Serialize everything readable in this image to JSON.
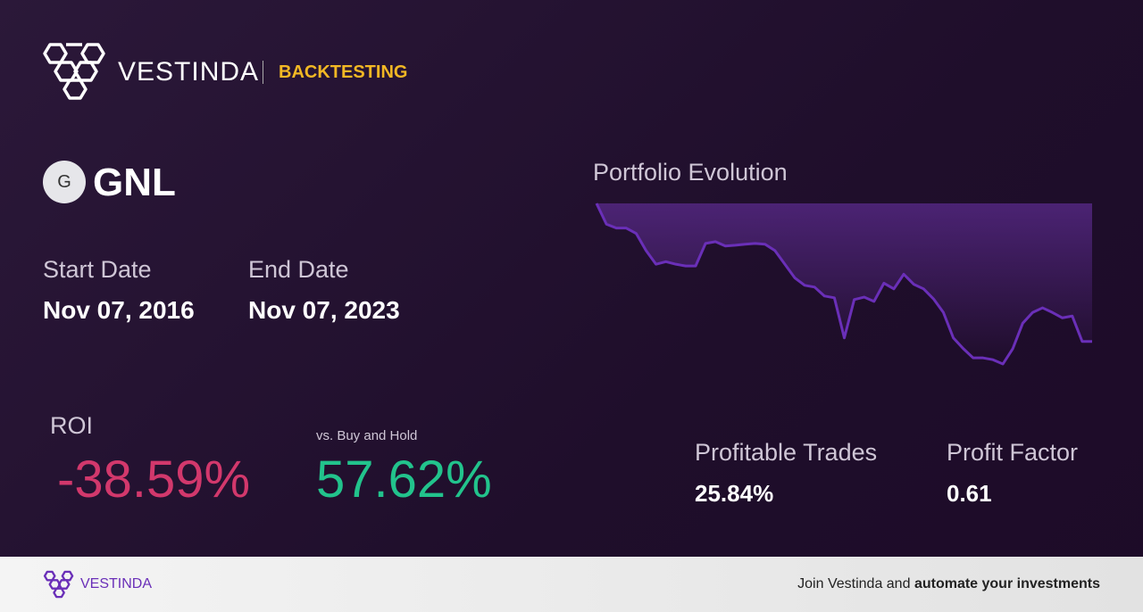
{
  "header": {
    "brand": "VESTINDA",
    "section": "BACKTESTING"
  },
  "asset": {
    "icon": "G",
    "ticker": "GNL"
  },
  "dates": {
    "start_label": "Start Date",
    "start_value": "Nov 07, 2016",
    "end_label": "End Date",
    "end_value": "Nov 07, 2023"
  },
  "roi": {
    "label": "ROI",
    "value": "-38.59%",
    "compare_label": "vs. Buy and Hold",
    "compare_value": "57.62%"
  },
  "stats": {
    "profitable_label": "Profitable Trades",
    "profitable_value": "25.84%",
    "factor_label": "Profit Factor",
    "factor_value": "0.61"
  },
  "chart_data": {
    "type": "line",
    "title": "Portfolio Evolution",
    "color": "#6a2fb8",
    "values": [
      100,
      94.2,
      93.1,
      93.1,
      91.6,
      86.8,
      83.0,
      83.7,
      83.0,
      82.5,
      82.5,
      88.8,
      89.3,
      88.1,
      88.3,
      88.6,
      88.8,
      88.6,
      86.8,
      83.0,
      79.2,
      77.1,
      76.6,
      74.1,
      73.6,
      62.4,
      73.1,
      73.8,
      72.6,
      77.7,
      76.1,
      80.2,
      77.4,
      76.1,
      73.3,
      69.5,
      62.4,
      59.4,
      56.8,
      56.8,
      56.3,
      55.1,
      59.4,
      66.5,
      69.5,
      70.8,
      69.5,
      68.0,
      68.5,
      61.4,
      61.4
    ]
  },
  "footer": {
    "brand": "VESTINDA",
    "text": "Join Vestinda and",
    "bold": "automate your investments"
  }
}
